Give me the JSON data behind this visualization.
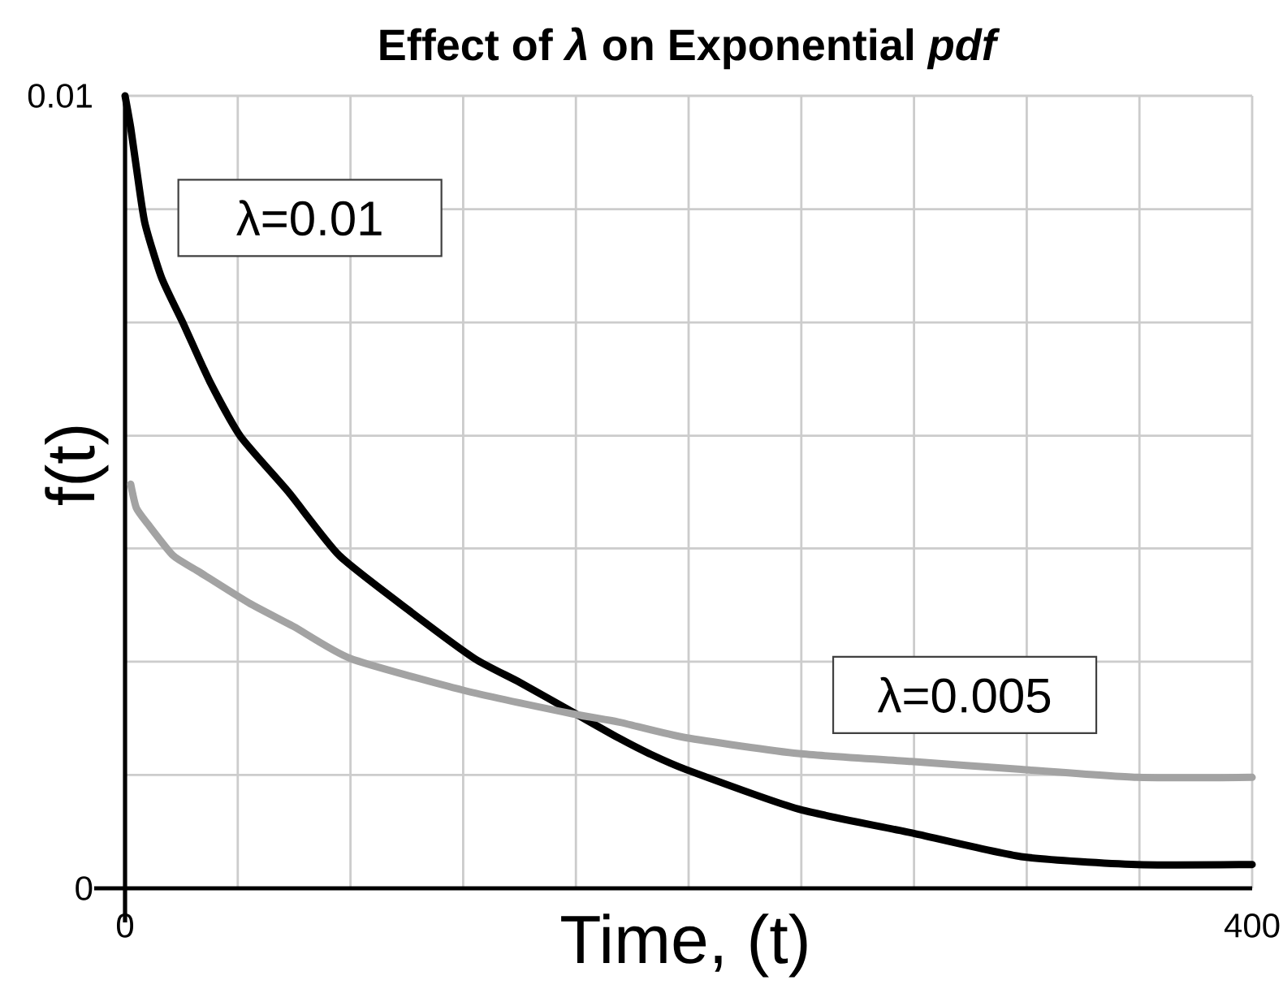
{
  "chart_data": {
    "type": "line",
    "title": "Effect of *λ* on Exponential *pdf*",
    "xlabel": "Time, (t)",
    "ylabel": "f(t)",
    "xlim": [
      0,
      400
    ],
    "ylim": [
      0,
      0.01
    ],
    "xticks": [
      {
        "value": 0,
        "label": "0"
      },
      {
        "value": 40,
        "label": null
      },
      {
        "value": 80,
        "label": null
      },
      {
        "value": 120,
        "label": null
      },
      {
        "value": 160,
        "label": null
      },
      {
        "value": 200,
        "label": null
      },
      {
        "value": 240,
        "label": null
      },
      {
        "value": 280,
        "label": null
      },
      {
        "value": 320,
        "label": null
      },
      {
        "value": 360,
        "label": null
      },
      {
        "value": 400,
        "label": "400"
      }
    ],
    "yticks": [
      {
        "value": 0,
        "label": "0"
      },
      {
        "value": 0.00143,
        "label": null
      },
      {
        "value": 0.00286,
        "label": null
      },
      {
        "value": 0.00429,
        "label": null
      },
      {
        "value": 0.00571,
        "label": null
      },
      {
        "value": 0.00714,
        "label": null
      },
      {
        "value": 0.00857,
        "label": null
      },
      {
        "value": 0.01,
        "label": "0.01"
      }
    ],
    "grid": true,
    "series": [
      {
        "name": "λ=0.01",
        "color": "#000000",
        "x": [
          0,
          2,
          4,
          7,
          13,
          21,
          30,
          41,
          58,
          76,
          101,
          124,
          140,
          160,
          175,
          186,
          199,
          239,
          279,
          318,
          359,
          400
        ],
        "values": [
          0.01,
          0.0096,
          0.0091,
          0.0084,
          0.0077,
          0.0071,
          0.0064,
          0.0057,
          0.005,
          0.0042,
          0.0035,
          0.0029,
          0.0026,
          0.0022,
          0.0019,
          0.0017,
          0.0015,
          0.001,
          0.0007,
          0.0004,
          0.0003,
          0.0003
        ]
      },
      {
        "name": "λ=0.005",
        "color": "#a3a3a3",
        "x": [
          2,
          4,
          8,
          17,
          26,
          44,
          60,
          80,
          120,
          159,
          175,
          199,
          239,
          279,
          318,
          359,
          400
        ],
        "values": [
          0.0051,
          0.0048,
          0.0046,
          0.0042,
          0.004,
          0.0036,
          0.0033,
          0.0029,
          0.0025,
          0.0022,
          0.0021,
          0.0019,
          0.0017,
          0.0016,
          0.0015,
          0.0014,
          0.0014
        ]
      }
    ]
  }
}
